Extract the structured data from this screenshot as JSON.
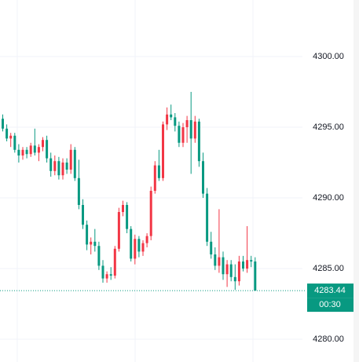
{
  "chart_data": {
    "type": "candlestick",
    "up_color": "#f23645",
    "down_color": "#089981",
    "open": [
      4295.6,
      4294.9,
      4294.2,
      4294.4,
      4293.4,
      4293.0,
      4293.4,
      4293.1,
      4293.7,
      4293.2,
      4293.6,
      4294.1,
      4292.8,
      4291.9,
      4292.6,
      4291.6,
      4292.5,
      4292.0,
      4293.4,
      4291.4,
      4289.5,
      4288.1,
      4286.7,
      4286.9,
      4286.6,
      4285.2,
      4284.3,
      4284.6,
      4284.5,
      4286.4,
      4289.0,
      4289.5,
      4287.8,
      4285.7,
      4287.1,
      4286.2,
      4286.8,
      4287.3,
      4290.5,
      4292.3,
      4291.4,
      4295.2,
      4295.9,
      4295.7,
      4295.1,
      4293.9,
      4295.0,
      4295.5,
      4294.2,
      4295.4,
      4292.6,
      4290.3,
      4286.9,
      4286.0,
      4285.2,
      4285.8,
      4284.6,
      4285.3,
      4284.4,
      4284.1,
      4285.5,
      4285.0,
      4285.6,
      4285.5
    ],
    "high": [
      4295.9,
      4295.2,
      4294.6,
      4294.6,
      4293.8,
      4293.6,
      4293.6,
      4293.9,
      4294.9,
      4293.8,
      4294.3,
      4294.4,
      4293.2,
      4293.0,
      4292.9,
      4292.8,
      4292.8,
      4293.8,
      4293.6,
      4292.7,
      4289.9,
      4288.4,
      4287.2,
      4287.8,
      4286.9,
      4285.6,
      4284.8,
      4285.1,
      4286.6,
      4289.3,
      4289.8,
      4289.7,
      4288.0,
      4287.4,
      4287.3,
      4287.0,
      4287.5,
      4290.8,
      4292.6,
      4293.4,
      4295.4,
      4296.4,
      4296.6,
      4296.0,
      4295.4,
      4295.3,
      4295.8,
      4297.5,
      4295.8,
      4295.6,
      4293.2,
      4290.7,
      4287.6,
      4286.5,
      4289.2,
      4286.2,
      4285.6,
      4285.6,
      4285.3,
      4285.9,
      4285.9,
      4288.0,
      4285.9,
      4285.8
    ],
    "low": [
      4294.7,
      4294.0,
      4293.6,
      4293.2,
      4292.5,
      4292.7,
      4292.8,
      4292.9,
      4293.0,
      4292.6,
      4293.3,
      4292.5,
      4291.5,
      4291.6,
      4291.3,
      4291.3,
      4291.7,
      4291.7,
      4291.2,
      4289.2,
      4287.8,
      4286.3,
      4286.0,
      4286.2,
      4284.9,
      4284.0,
      4284.0,
      4284.2,
      4284.3,
      4286.2,
      4288.7,
      4287.5,
      4285.5,
      4285.3,
      4285.8,
      4285.9,
      4286.5,
      4287.0,
      4290.3,
      4291.2,
      4291.2,
      4294.8,
      4295.5,
      4294.7,
      4293.6,
      4293.6,
      4293.9,
      4291.7,
      4293.9,
      4292.2,
      4290.0,
      4286.6,
      4285.7,
      4284.9,
      4284.7,
      4284.2,
      4283.7,
      4284.1,
      4283.5,
      4283.8,
      4284.8,
      4284.7,
      4285.1,
      4283.44
    ],
    "close": [
      4294.9,
      4294.2,
      4294.4,
      4293.4,
      4293.0,
      4293.4,
      4293.1,
      4293.7,
      4293.2,
      4293.6,
      4294.1,
      4292.8,
      4291.9,
      4292.6,
      4291.6,
      4292.5,
      4292.0,
      4293.4,
      4291.4,
      4289.5,
      4288.1,
      4286.7,
      4286.9,
      4286.6,
      4285.2,
      4284.3,
      4284.6,
      4284.5,
      4286.4,
      4289.0,
      4289.5,
      4287.8,
      4285.7,
      4287.1,
      4286.2,
      4286.8,
      4287.3,
      4290.5,
      4292.3,
      4291.4,
      4295.2,
      4295.9,
      4295.7,
      4295.1,
      4293.9,
      4295.0,
      4295.5,
      4294.2,
      4295.4,
      4292.6,
      4290.3,
      4286.9,
      4286.0,
      4285.2,
      4285.8,
      4284.6,
      4285.3,
      4284.4,
      4284.1,
      4285.5,
      4285.0,
      4285.6,
      4285.5,
      4283.44
    ],
    "ylim": [
      4278.39,
      4304
    ],
    "yticks": [
      {
        "value": 4280,
        "label": "4280.00"
      },
      {
        "value": 4285,
        "label": "4285.00"
      },
      {
        "value": 4290,
        "label": "4290.00"
      },
      {
        "value": 4295,
        "label": "4295.00"
      },
      {
        "value": 4300,
        "label": "4300.00"
      }
    ],
    "grid": true,
    "last_price": {
      "value": 4283.44,
      "label": "4283.44"
    },
    "countdown": "00:30"
  }
}
